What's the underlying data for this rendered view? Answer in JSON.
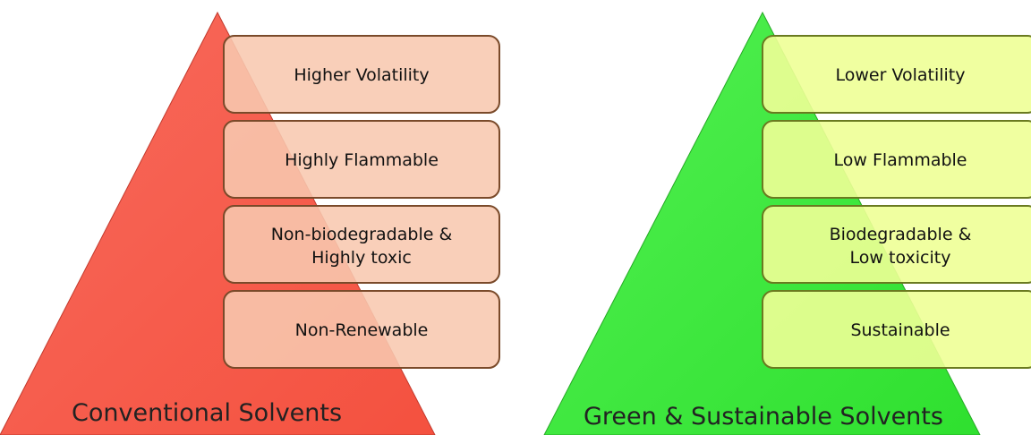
{
  "pyramids": [
    {
      "title": "Conventional Solvents",
      "items": [
        "Higher Volatility",
        "Highly Flammable",
        "Non-biodegradable & Highly toxic",
        "Non-Renewable"
      ]
    },
    {
      "title": "Green & Sustainable Solvents",
      "items": [
        "Lower Volatility",
        "Low Flammable",
        "Biodegradable & Low toxicity",
        "Sustainable"
      ]
    }
  ]
}
